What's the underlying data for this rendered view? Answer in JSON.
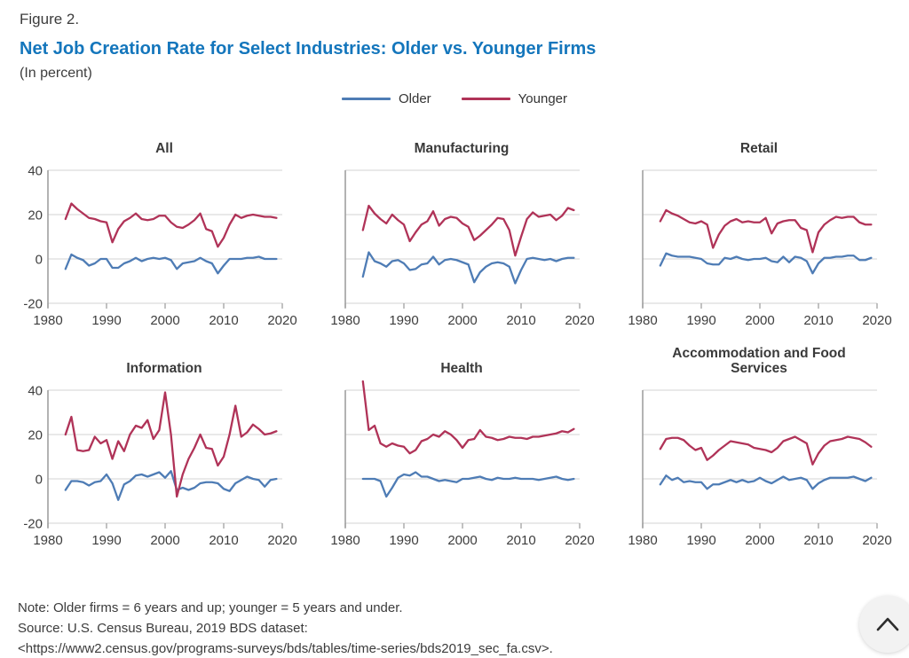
{
  "figure": {
    "label": "Figure 2.",
    "title": "Net Job Creation Rate for Select Industries: Older vs. Younger Firms",
    "subtitle": "(In percent)"
  },
  "colors": {
    "older": "#4e7cb5",
    "younger": "#b03358",
    "title_blue": "#1476bc",
    "grid": "#dcdcdc",
    "spine": "#9a9a9a",
    "tick_text": "#3d3d3d",
    "button_bg": "#f2f2f2"
  },
  "notes": {
    "note": "Note: Older firms = 6 years and up; younger = 5 years and under.",
    "source": "Source: U.S. Census Bureau, 2019 BDS dataset:",
    "url": "<https://www2.census.gov/programs-surveys/bds/tables/time-series/bds2019_sec_fa.csv>."
  },
  "chart_data": {
    "type": "line",
    "legend": [
      "Older",
      "Younger"
    ],
    "legend_position": "top-center",
    "grid": true,
    "xlim": [
      1980,
      2020
    ],
    "ylim": [
      -20,
      40
    ],
    "xticks": [
      1980,
      1990,
      2000,
      2010,
      2020
    ],
    "yticks": [
      40,
      20,
      0,
      -20
    ],
    "years": [
      1983,
      1984,
      1985,
      1986,
      1987,
      1988,
      1989,
      1990,
      1991,
      1992,
      1993,
      1994,
      1995,
      1996,
      1997,
      1998,
      1999,
      2000,
      2001,
      2002,
      2003,
      2004,
      2005,
      2006,
      2007,
      2008,
      2009,
      2010,
      2011,
      2012,
      2013,
      2014,
      2015,
      2016,
      2017,
      2018,
      2019
    ],
    "subplots": [
      {
        "title": "All",
        "y_tick_labels": true,
        "older": [
          -4.5,
          2,
          0.5,
          -0.5,
          -3,
          -2,
          0,
          0,
          -4,
          -4,
          -2,
          -1,
          0.5,
          -1,
          0,
          0.5,
          0,
          0.5,
          -0.5,
          -4.5,
          -2,
          -1.5,
          -1,
          0.5,
          -1,
          -2,
          -6.5,
          -3,
          0,
          0,
          0,
          0.5,
          0.5,
          1,
          0,
          0,
          0
        ],
        "younger": [
          18,
          25,
          22.5,
          20.5,
          18.5,
          18,
          17,
          16.5,
          7.5,
          13.5,
          17,
          18.5,
          20.5,
          18,
          17.5,
          18,
          19.5,
          19.5,
          16.5,
          14.5,
          14,
          15.5,
          17.5,
          20.5,
          13.5,
          12.5,
          5.5,
          9.5,
          15.5,
          20,
          18.5,
          19.5,
          20,
          19.5,
          19,
          19,
          18.5
        ]
      },
      {
        "title": "Manufacturing",
        "y_tick_labels": false,
        "older": [
          -8,
          3,
          -1,
          -2,
          -3.5,
          -1,
          -0.5,
          -2,
          -5,
          -4.5,
          -2.5,
          -2,
          1,
          -2.5,
          -0.5,
          0,
          -0.5,
          -1.5,
          -2.5,
          -10.5,
          -6,
          -3.5,
          -2,
          -1.5,
          -2,
          -3.5,
          -11,
          -5,
          0,
          0.5,
          0,
          -0.5,
          0,
          -1,
          0,
          0.5,
          0.5
        ],
        "younger": [
          13,
          24,
          20.5,
          18,
          16,
          20,
          17.5,
          15.5,
          8,
          12,
          15.5,
          17,
          21.5,
          15,
          18,
          19,
          18.5,
          16,
          14.5,
          8.5,
          10.5,
          13,
          15.5,
          18.5,
          18,
          13,
          1.5,
          10,
          18,
          21,
          19,
          19.5,
          20,
          17.5,
          19.5,
          23,
          22
        ]
      },
      {
        "title": "Retail",
        "y_tick_labels": false,
        "older": [
          -3,
          2.5,
          1.5,
          1,
          1,
          1,
          0.5,
          0,
          -2,
          -2.5,
          -2.5,
          0.5,
          0,
          1,
          0,
          -0.5,
          0,
          0,
          0.5,
          -1,
          -1.5,
          1,
          -1.5,
          1,
          0.5,
          -1,
          -6.5,
          -2,
          0.5,
          0.5,
          1,
          1,
          1.5,
          1.5,
          -0.5,
          -0.5,
          0.5
        ],
        "younger": [
          17,
          22,
          20.5,
          19.5,
          18,
          16.5,
          16,
          17,
          15.5,
          5,
          11,
          15,
          17,
          18,
          16.5,
          17,
          16.5,
          16.5,
          18.5,
          11.5,
          16,
          17,
          17.5,
          17.5,
          14,
          13,
          3,
          12,
          15.5,
          17.5,
          19,
          18.5,
          19,
          19,
          16.5,
          15.5,
          15.5
        ]
      },
      {
        "title": "Information",
        "y_tick_labels": true,
        "older": [
          -5,
          -1,
          -1,
          -1.5,
          -3,
          -1.5,
          -1,
          2,
          -2,
          -9.5,
          -2.5,
          -1,
          1.5,
          2,
          1,
          2,
          3,
          0.5,
          3.5,
          -5,
          -4,
          -5,
          -4,
          -2,
          -1.5,
          -1.5,
          -2,
          -4.5,
          -5.5,
          -2,
          -0.5,
          1,
          0,
          -0.5,
          -3.5,
          -0.5,
          0
        ],
        "younger": [
          20,
          28,
          13,
          12.5,
          13,
          19,
          16,
          17.5,
          9,
          17,
          12.5,
          20,
          24,
          23,
          26.5,
          18,
          22,
          39,
          20,
          -8,
          2,
          9,
          14,
          20,
          14,
          13.5,
          6,
          10,
          20,
          33,
          19,
          21,
          24.5,
          22.5,
          20,
          20.5,
          21.5
        ]
      },
      {
        "title": "Health",
        "y_tick_labels": false,
        "older": [
          0,
          0,
          0,
          -1,
          -8,
          -4,
          0.5,
          2,
          1.5,
          3,
          1,
          1,
          0,
          -1,
          -0.5,
          -1,
          -1.5,
          0,
          0,
          0.5,
          1,
          0,
          -0.5,
          0.5,
          0,
          0,
          0.5,
          0,
          0,
          0,
          -0.5,
          0,
          0.5,
          1,
          0,
          -0.5,
          0
        ],
        "younger": [
          44,
          22,
          24,
          16,
          14.5,
          16,
          15,
          14.5,
          11.5,
          13,
          17,
          18,
          20,
          19,
          21.5,
          20,
          17.5,
          14,
          17.5,
          18,
          22,
          19,
          18.5,
          17.5,
          18,
          19,
          18.5,
          18.5,
          18,
          19,
          19,
          19.5,
          20,
          20.5,
          21.5,
          21,
          22.5
        ]
      },
      {
        "title": "Accommodation and Food Services",
        "y_tick_labels": false,
        "older": [
          -2.5,
          1.5,
          -0.5,
          0.5,
          -1.5,
          -1,
          -1.5,
          -1.5,
          -4.5,
          -2.5,
          -2.5,
          -1.5,
          -0.5,
          -1.5,
          -0.5,
          -1.5,
          -1,
          0.5,
          -1,
          -2,
          -0.5,
          1,
          -0.5,
          0,
          0.5,
          -0.5,
          -4.5,
          -2,
          -0.5,
          0.5,
          0.5,
          0.5,
          0.5,
          1,
          0,
          -1,
          0.5
        ],
        "younger": [
          13.5,
          18,
          18.5,
          18.5,
          17.5,
          15,
          13,
          14,
          8.5,
          10.5,
          13,
          15,
          17,
          16.5,
          16,
          15.5,
          14,
          13.5,
          13,
          12,
          14,
          17,
          18,
          19,
          17.5,
          16,
          6.5,
          11.5,
          15,
          17,
          17.5,
          18,
          19,
          18.5,
          18,
          16.5,
          14.5
        ]
      }
    ]
  }
}
